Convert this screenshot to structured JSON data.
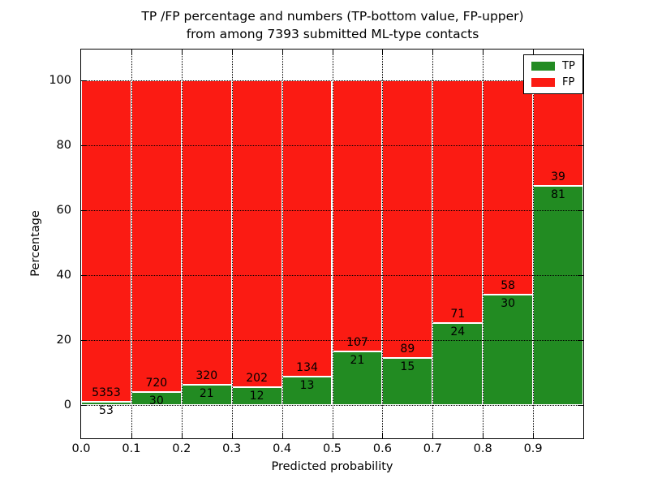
{
  "figure": {
    "title_line1": "TP /FP percentage and numbers (TP-bottom value, FP-upper)",
    "title_line2": "from among 7393 submitted ML-type contacts"
  },
  "axes": {
    "xlabel": "Predicted probability",
    "ylabel": "Percentage",
    "x_tick_labels": [
      "0.0",
      "0.1",
      "0.2",
      "0.3",
      "0.4",
      "0.5",
      "0.6",
      "0.7",
      "0.8",
      "0.9"
    ],
    "y_tick_labels": [
      "0",
      "20",
      "40",
      "60",
      "80",
      "100"
    ]
  },
  "legend": {
    "position": "upper right",
    "items": [
      {
        "label": "TP",
        "color": "#228B22"
      },
      {
        "label": "FP",
        "color": "#FB1B13"
      }
    ]
  },
  "chart_data": {
    "type": "bar",
    "subtype": "stacked-100-percent",
    "title": "TP /FP percentage and numbers (TP-bottom value, FP-upper) from among 7393 submitted ML-type contacts",
    "xlabel": "Predicted probability",
    "ylabel": "Percentage",
    "total_contacts": 7393,
    "bin_width": 0.1,
    "bin_starts": [
      0.0,
      0.1,
      0.2,
      0.3,
      0.4,
      0.5,
      0.6,
      0.7,
      0.8,
      0.9
    ],
    "categories": [
      "0.0",
      "0.1",
      "0.2",
      "0.3",
      "0.4",
      "0.5",
      "0.6",
      "0.7",
      "0.8",
      "0.9"
    ],
    "series": [
      {
        "name": "TP",
        "color": "#228B22",
        "counts": [
          53,
          30,
          21,
          12,
          13,
          21,
          15,
          24,
          30,
          81
        ]
      },
      {
        "name": "FP",
        "color": "#FB1B13",
        "counts": [
          5353,
          720,
          320,
          202,
          134,
          107,
          89,
          71,
          58,
          39
        ]
      }
    ],
    "tp_percent_of_bin": [
      0.98,
      4.0,
      6.16,
      5.61,
      8.84,
      16.41,
      14.42,
      25.26,
      34.09,
      67.5
    ],
    "x_ticks": [
      0.0,
      0.1,
      0.2,
      0.3,
      0.4,
      0.5,
      0.6,
      0.7,
      0.8,
      0.9
    ],
    "y_ticks": [
      0,
      20,
      40,
      60,
      80,
      100
    ],
    "xlim": [
      0.0,
      1.0
    ],
    "ylim": [
      -10.25,
      109.5
    ],
    "grid": "dotted black, drawn above bars",
    "legend_position": "upper right"
  }
}
